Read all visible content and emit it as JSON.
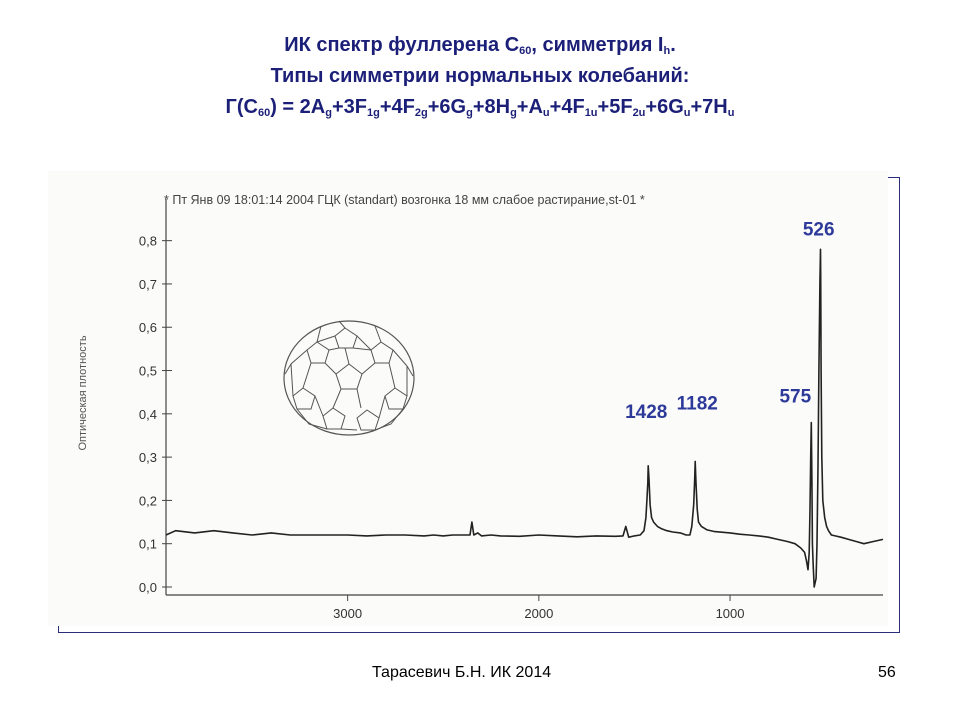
{
  "title": {
    "line1": {
      "prefix": "ИК спектр фуллерена C",
      "sub1": "60",
      "middle": ", симметрия I",
      "sub2": "h",
      "suffix": "."
    },
    "line2": "Типы симметрии нормальных колебаний:",
    "line3": {
      "p0": "Г(C",
      "s0": "60",
      "p1": ") = 2A",
      "s1": "g",
      "p2": "+3F",
      "s2": "1g",
      "p3": "+4F",
      "s3": "2g",
      "p4": "+6G",
      "s4": "g",
      "p5": "+8H",
      "s5": "g",
      "p6": "+A",
      "s6": "u",
      "p7": "+4F",
      "s7": "1u",
      "p8": "+5F",
      "s8": "2u",
      "p9": "+6G",
      "s9": "u",
      "p10": "+7H",
      "s10": "u"
    }
  },
  "chart_data": {
    "type": "line",
    "header": "* Пт Янв 09 18:01:14 2004 ГЦК (standart) возгонка 18 мм слабое растирание,st-01 *",
    "ylabel": "Оптическая плотность",
    "xlabel": "",
    "y_ticks": [
      "0,0",
      "0,1",
      "0,2",
      "0,3",
      "0,4",
      "0,5",
      "0,6",
      "0,7",
      "0,8"
    ],
    "x_ticks": [
      "3000",
      "2000",
      "1000"
    ],
    "x_tick_values": [
      3000,
      2000,
      1000
    ],
    "ylim": [
      0.0,
      0.85
    ],
    "xlim": [
      3950,
      200
    ],
    "x_reversed": true,
    "grid": false,
    "peak_labels": [
      {
        "text": "1428",
        "x": 1428,
        "y": 0.28
      },
      {
        "text": "1182",
        "x": 1182,
        "y": 0.29
      },
      {
        "text": "575",
        "x": 575,
        "y": 0.38
      },
      {
        "text": "526",
        "x": 526,
        "y": 0.78
      }
    ],
    "series": [
      {
        "x": [
          3950,
          3900,
          3800,
          3700,
          3600,
          3500,
          3400,
          3300,
          3200,
          3100,
          3000,
          2900,
          2800,
          2700,
          2600,
          2550,
          2500,
          2450,
          2400,
          2360,
          2350,
          2340,
          2320,
          2300,
          2250,
          2200,
          2100,
          2000,
          1900,
          1800,
          1700,
          1600,
          1560,
          1545,
          1530,
          1500,
          1470,
          1450,
          1440,
          1435,
          1430,
          1428,
          1424,
          1418,
          1410,
          1400,
          1380,
          1360,
          1330,
          1300,
          1260,
          1230,
          1210,
          1200,
          1190,
          1185,
          1182,
          1178,
          1172,
          1165,
          1150,
          1120,
          1080,
          1000,
          950,
          900,
          850,
          800,
          750,
          700,
          660,
          630,
          610,
          600,
          592,
          586,
          582,
          578,
          575,
          572,
          569,
          565,
          560,
          550,
          545,
          540,
          535,
          530,
          527,
          526,
          524,
          520,
          515,
          505,
          495,
          485,
          470,
          450,
          420,
          380,
          340,
          300,
          250,
          200
        ],
        "y": [
          0.12,
          0.13,
          0.125,
          0.13,
          0.125,
          0.12,
          0.125,
          0.12,
          0.12,
          0.12,
          0.12,
          0.118,
          0.12,
          0.12,
          0.118,
          0.12,
          0.118,
          0.12,
          0.12,
          0.12,
          0.15,
          0.12,
          0.125,
          0.118,
          0.12,
          0.118,
          0.117,
          0.12,
          0.118,
          0.116,
          0.118,
          0.117,
          0.118,
          0.14,
          0.115,
          0.118,
          0.12,
          0.13,
          0.16,
          0.2,
          0.24,
          0.28,
          0.25,
          0.19,
          0.16,
          0.15,
          0.14,
          0.135,
          0.13,
          0.127,
          0.125,
          0.12,
          0.12,
          0.14,
          0.19,
          0.25,
          0.29,
          0.24,
          0.18,
          0.15,
          0.14,
          0.132,
          0.128,
          0.125,
          0.122,
          0.12,
          0.118,
          0.115,
          0.11,
          0.105,
          0.1,
          0.09,
          0.08,
          0.06,
          0.04,
          0.08,
          0.18,
          0.3,
          0.38,
          0.25,
          0.1,
          0.05,
          0.0,
          0.02,
          0.1,
          0.28,
          0.5,
          0.7,
          0.78,
          0.72,
          0.5,
          0.3,
          0.2,
          0.16,
          0.14,
          0.13,
          0.12,
          0.118,
          0.115,
          0.11,
          0.105,
          0.1,
          0.105,
          0.11
        ]
      }
    ]
  },
  "footer": {
    "author": "Тарасевич Б.Н.  ИК 2014",
    "page": "56"
  }
}
